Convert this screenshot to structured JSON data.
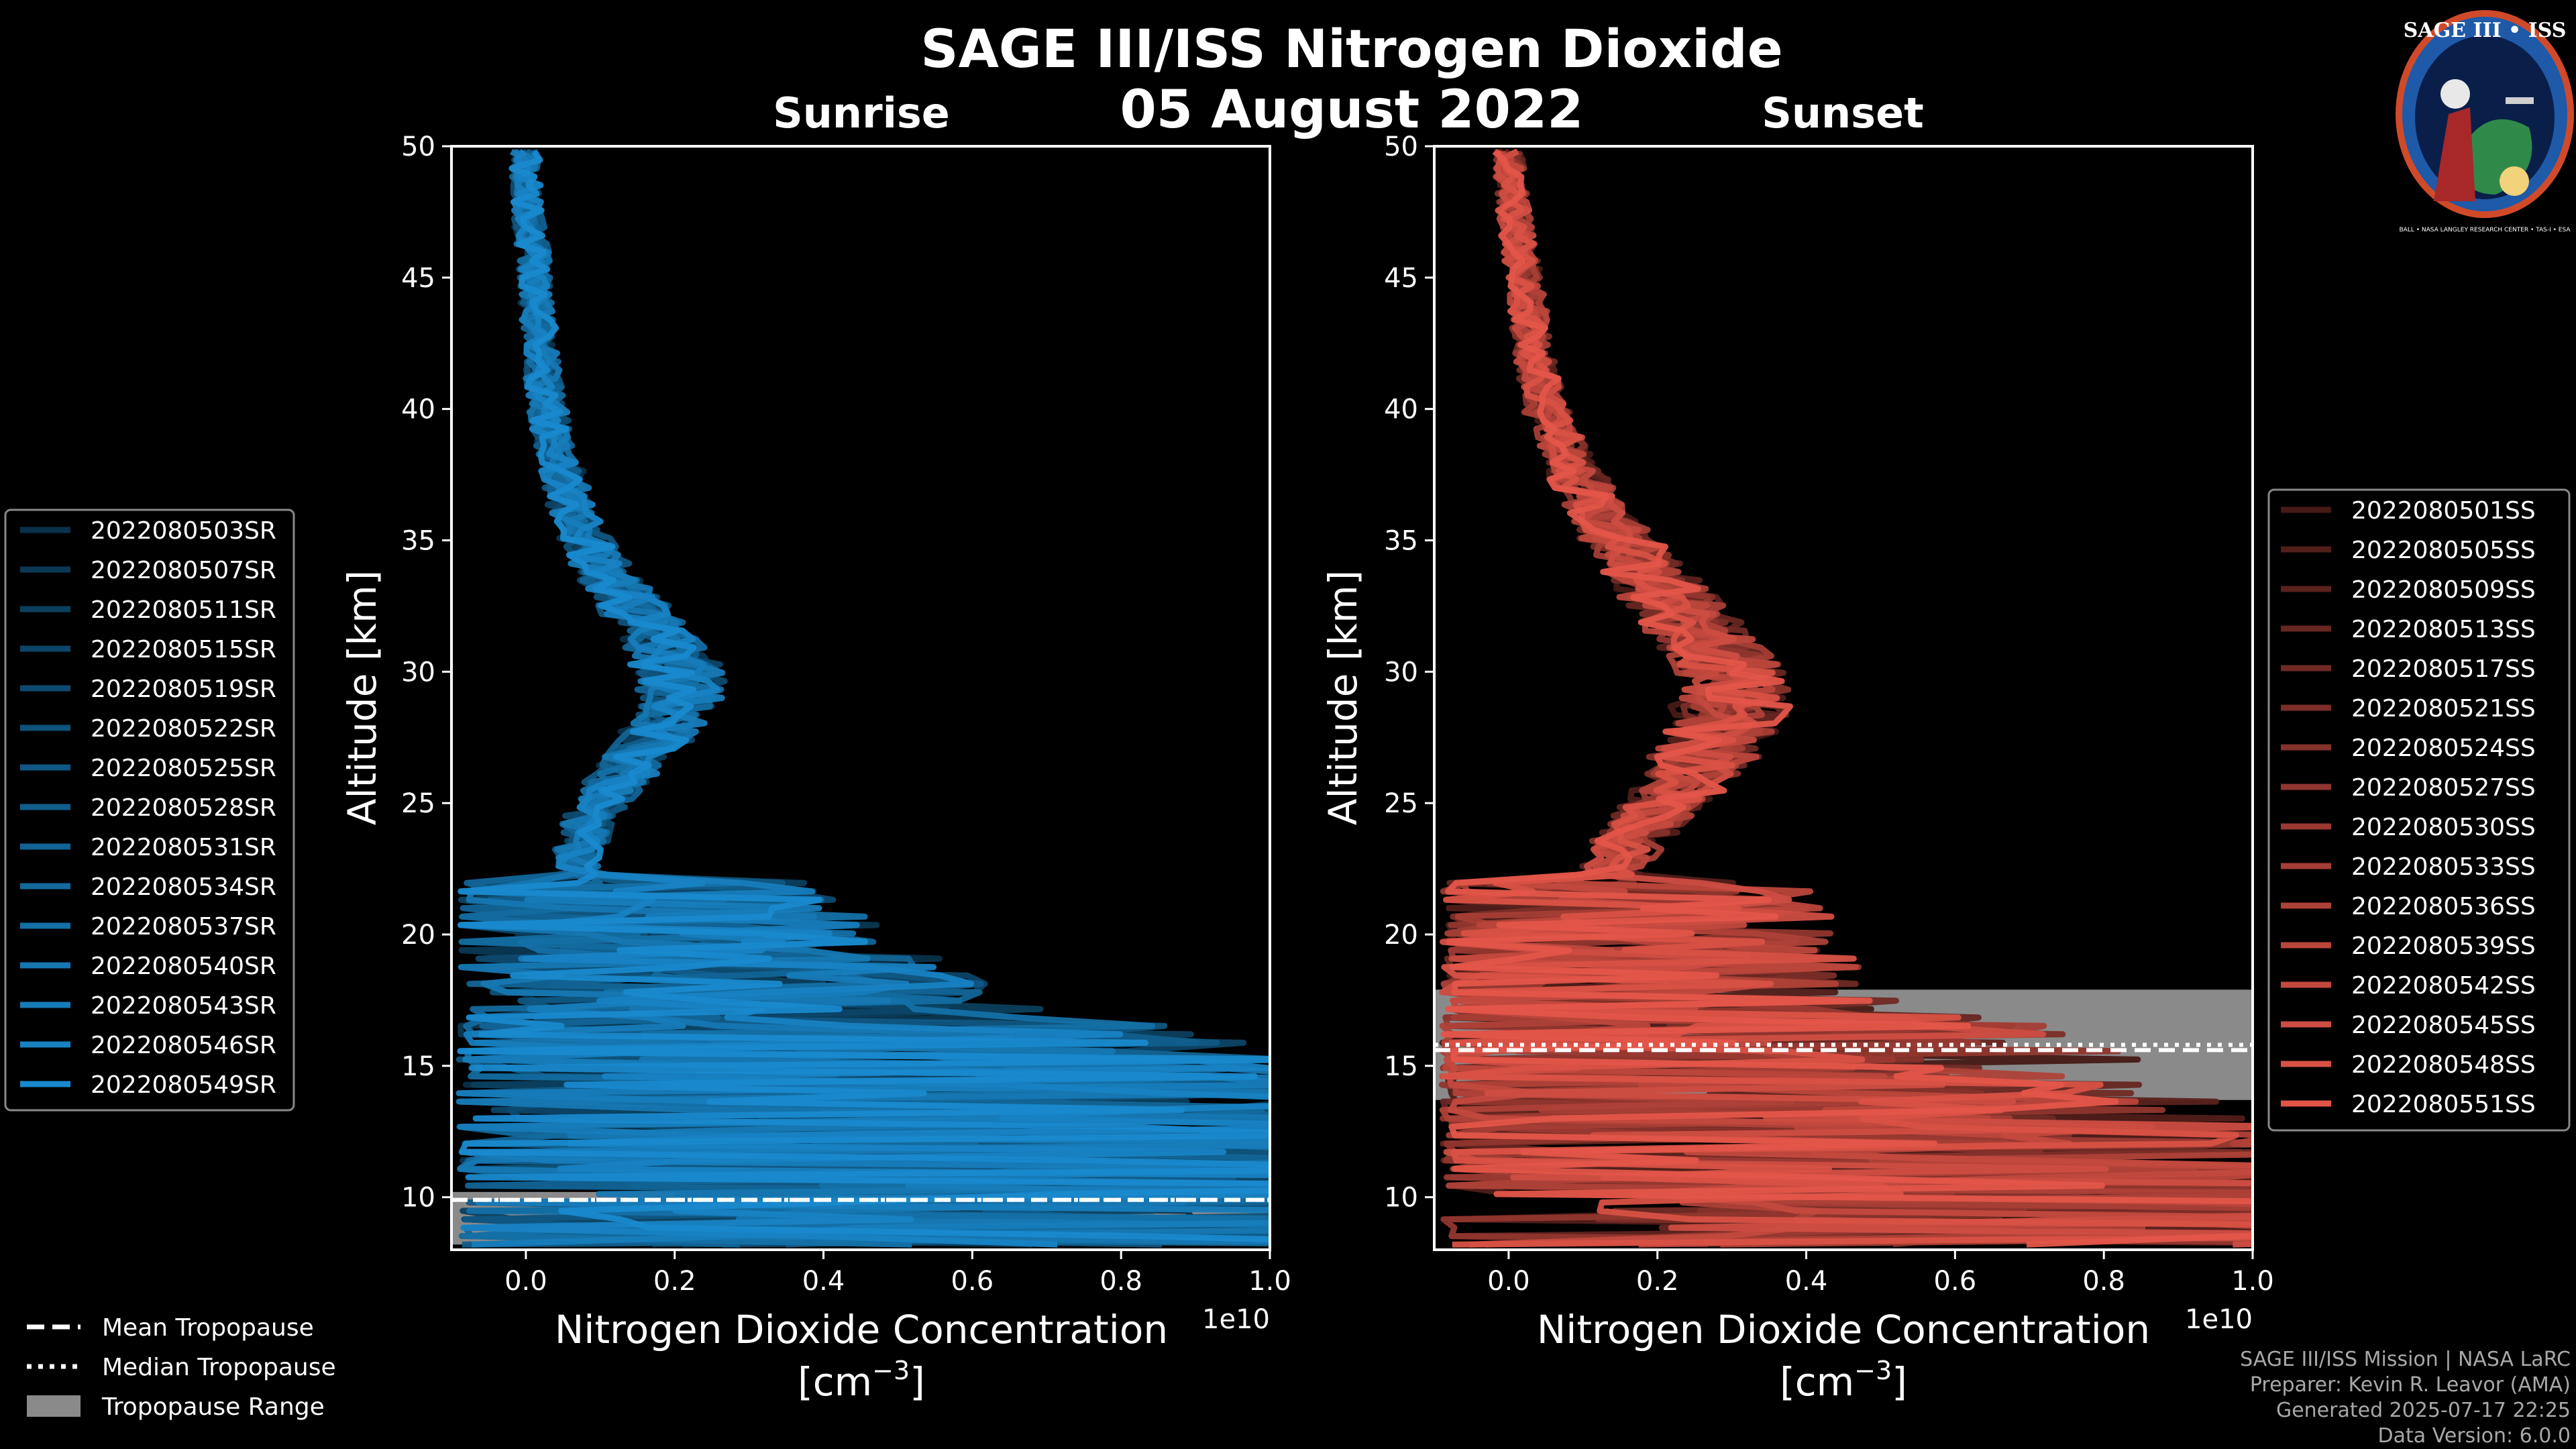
{
  "title": "SAGE III/ISS Nitrogen Dioxide",
  "date": "05 August 2022",
  "colors": {
    "sunrise": "#1a8fd6",
    "sunset": "#e8574a",
    "tropo_fill": "#8a8a8a",
    "background": "#000000"
  },
  "logo": {
    "title": "SAGE III • ISS",
    "ring": "BALL • NASA LANGLEY RESEARCH CENTER • TAS-I • ESA"
  },
  "credits": [
    "SAGE III/ISS Mission | NASA LaRC",
    "Preparer: Kevin R. Leavor (AMA)",
    "Generated 2025-07-17 22:25",
    "Data Version: 6.0.0"
  ],
  "tropopause_legend": [
    {
      "style": "dashed",
      "label": "Mean Tropopause"
    },
    {
      "style": "dotted",
      "label": "Median Tropopause"
    },
    {
      "style": "box",
      "label": "Tropopause Range"
    }
  ],
  "chart_data": [
    {
      "type": "line",
      "panel": "Sunrise",
      "title": "Sunrise",
      "xlabel": "Nitrogen Dioxide Concentration",
      "xunit": "[cm",
      "xunit_sup": "−3",
      "xunit_close": "]",
      "xscale_label": "1e10",
      "ylabel": "Altitude [km]",
      "xlim": [
        -0.1,
        1.0
      ],
      "ylim": [
        8,
        50
      ],
      "xticks": [
        "0.0",
        "0.2",
        "0.4",
        "0.6",
        "0.8",
        "1.0"
      ],
      "xtick_values": [
        0,
        0.2,
        0.4,
        0.6,
        0.8,
        1.0
      ],
      "yticks": [
        "10",
        "15",
        "20",
        "25",
        "30",
        "35",
        "40",
        "45",
        "50"
      ],
      "ytick_values": [
        10,
        15,
        20,
        25,
        30,
        35,
        40,
        45,
        50
      ],
      "tropopause": {
        "mean": 9.9,
        "median": 9.9,
        "range": [
          8.2,
          10.2
        ]
      },
      "mean_profile": {
        "altitude": [
          8.5,
          10,
          12,
          14,
          16,
          17,
          18,
          19,
          20,
          21,
          22,
          23,
          24,
          25,
          26,
          27,
          28,
          29,
          30,
          31,
          32,
          33,
          34,
          35,
          36,
          37,
          38,
          39,
          40,
          42,
          44,
          46,
          48,
          50
        ],
        "value": [
          0.45,
          0.5,
          0.45,
          0.4,
          0.3,
          0.26,
          0.22,
          0.18,
          0.14,
          0.1,
          0.08,
          0.07,
          0.08,
          0.1,
          0.13,
          0.16,
          0.19,
          0.21,
          0.21,
          0.19,
          0.16,
          0.13,
          0.1,
          0.08,
          0.065,
          0.055,
          0.045,
          0.035,
          0.03,
          0.02,
          0.015,
          0.01,
          0.0,
          0.0
        ]
      },
      "series": [
        {
          "name": "2022080503SR",
          "shade": 0.35
        },
        {
          "name": "2022080507SR",
          "shade": 0.39
        },
        {
          "name": "2022080511SR",
          "shade": 0.44
        },
        {
          "name": "2022080515SR",
          "shade": 0.48
        },
        {
          "name": "2022080519SR",
          "shade": 0.52
        },
        {
          "name": "2022080522SR",
          "shade": 0.57
        },
        {
          "name": "2022080525SR",
          "shade": 0.61
        },
        {
          "name": "2022080528SR",
          "shade": 0.65
        },
        {
          "name": "2022080531SR",
          "shade": 0.7
        },
        {
          "name": "2022080534SR",
          "shade": 0.74
        },
        {
          "name": "2022080537SR",
          "shade": 0.78
        },
        {
          "name": "2022080540SR",
          "shade": 0.83
        },
        {
          "name": "2022080543SR",
          "shade": 0.87
        },
        {
          "name": "2022080546SR",
          "shade": 0.91
        },
        {
          "name": "2022080549SR",
          "shade": 0.96
        }
      ]
    },
    {
      "type": "line",
      "panel": "Sunset",
      "title": "Sunset",
      "xlabel": "Nitrogen Dioxide Concentration",
      "xunit": "[cm",
      "xunit_sup": "−3",
      "xunit_close": "]",
      "xscale_label": "1e10",
      "ylabel": "Altitude [km]",
      "xlim": [
        -0.1,
        1.0
      ],
      "ylim": [
        8,
        50
      ],
      "xticks": [
        "0.0",
        "0.2",
        "0.4",
        "0.6",
        "0.8",
        "1.0"
      ],
      "xtick_values": [
        0,
        0.2,
        0.4,
        0.6,
        0.8,
        1.0
      ],
      "yticks": [
        "10",
        "15",
        "20",
        "25",
        "30",
        "35",
        "40",
        "45",
        "50"
      ],
      "ytick_values": [
        10,
        15,
        20,
        25,
        30,
        35,
        40,
        45,
        50
      ],
      "tropopause": {
        "mean": 15.6,
        "median": 15.8,
        "range": [
          13.7,
          17.9
        ]
      },
      "mean_profile": {
        "altitude": [
          8.5,
          10,
          11,
          12,
          13,
          14,
          15,
          16,
          17,
          18,
          19,
          20,
          21,
          22,
          23,
          24,
          25,
          26,
          27,
          28,
          29,
          30,
          31,
          32,
          33,
          34,
          35,
          36,
          37,
          38,
          39,
          40,
          42,
          44,
          46,
          48,
          50
        ],
        "value": [
          0.5,
          0.55,
          0.4,
          0.3,
          0.22,
          0.16,
          0.12,
          0.09,
          0.08,
          0.07,
          0.07,
          0.08,
          0.1,
          0.12,
          0.15,
          0.18,
          0.21,
          0.24,
          0.27,
          0.29,
          0.3,
          0.29,
          0.27,
          0.24,
          0.21,
          0.18,
          0.15,
          0.12,
          0.1,
          0.08,
          0.065,
          0.05,
          0.035,
          0.025,
          0.015,
          0.005,
          0.0
        ]
      },
      "series": [
        {
          "name": "2022080501SS",
          "shade": 0.3
        },
        {
          "name": "2022080505SS",
          "shade": 0.35
        },
        {
          "name": "2022080509SS",
          "shade": 0.39
        },
        {
          "name": "2022080513SS",
          "shade": 0.44
        },
        {
          "name": "2022080517SS",
          "shade": 0.48
        },
        {
          "name": "2022080521SS",
          "shade": 0.53
        },
        {
          "name": "2022080524SS",
          "shade": 0.57
        },
        {
          "name": "2022080527SS",
          "shade": 0.62
        },
        {
          "name": "2022080530SS",
          "shade": 0.66
        },
        {
          "name": "2022080533SS",
          "shade": 0.71
        },
        {
          "name": "2022080536SS",
          "shade": 0.75
        },
        {
          "name": "2022080539SS",
          "shade": 0.8
        },
        {
          "name": "2022080542SS",
          "shade": 0.84
        },
        {
          "name": "2022080545SS",
          "shade": 0.89
        },
        {
          "name": "2022080548SS",
          "shade": 0.93
        },
        {
          "name": "2022080551SS",
          "shade": 0.98
        }
      ]
    }
  ]
}
